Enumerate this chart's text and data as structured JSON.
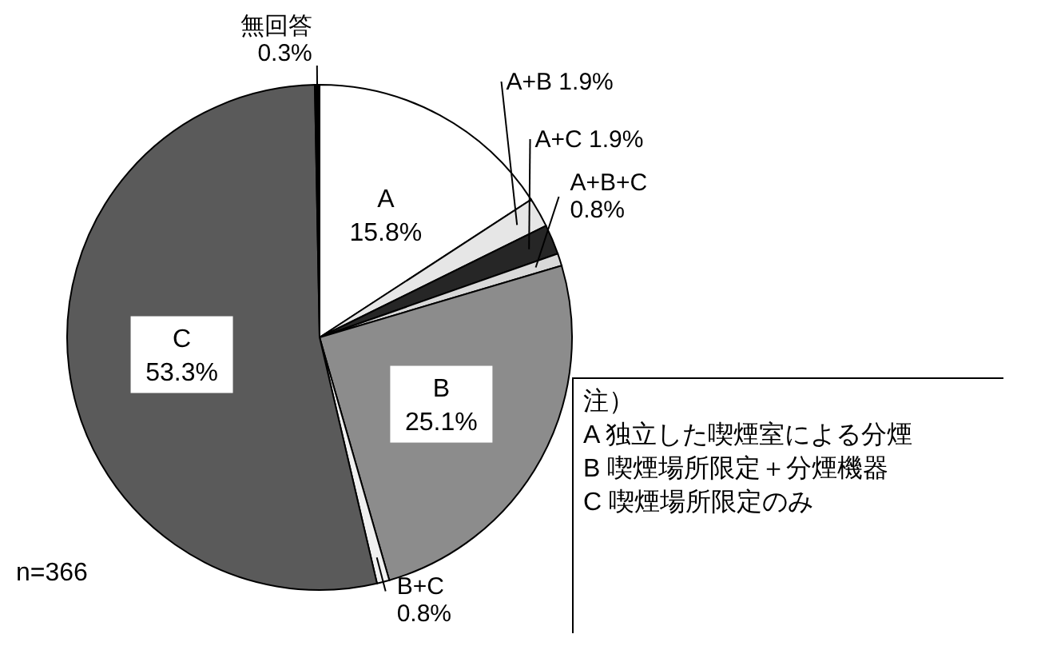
{
  "chart_data": {
    "type": "pie",
    "categories": [
      "A",
      "A+B",
      "A+C",
      "A+B+C",
      "B",
      "B+C",
      "C",
      "無回答"
    ],
    "values": [
      15.8,
      1.9,
      1.9,
      0.8,
      25.1,
      0.8,
      53.3,
      0.3
    ],
    "colors": [
      "#ffffff",
      "#e6e6e6",
      "#262626",
      "#d9d9d9",
      "#8c8c8c",
      "#f0f0f0",
      "#5a5a5a",
      "#000000"
    ],
    "value_labels": [
      "15.8%",
      "1.9%",
      "1.9%",
      "0.8%",
      "25.1%",
      "0.8%",
      "53.3%",
      "0.3%"
    ],
    "legend": false,
    "annotations": [
      "n=366",
      "注）",
      "A  独立した喫煙室による分煙",
      "B  喫煙場所限定＋分煙機器",
      "C  喫煙場所限定のみ"
    ]
  }
}
